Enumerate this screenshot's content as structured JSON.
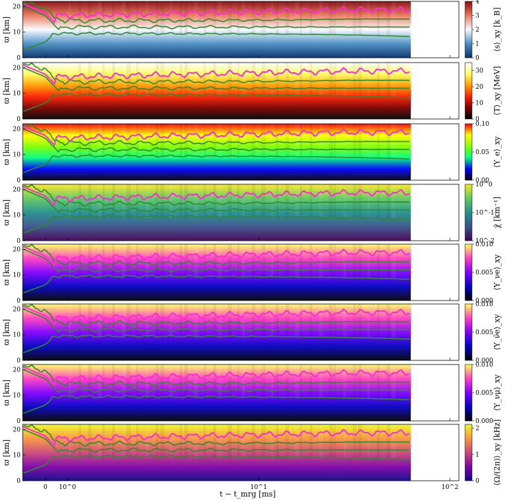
{
  "figure": {
    "xlabel": "t − t_mrg [ms]",
    "ylabel": "ϖ [km]",
    "x_axis": {
      "scale": "symlog",
      "ticks": [
        "0",
        "10^0",
        "10^1",
        "10^2"
      ],
      "range": [
        -0.4,
        120
      ]
    },
    "y_axis": {
      "range": [
        0,
        22
      ],
      "ticks": [
        "0",
        "10",
        "20"
      ]
    }
  },
  "chart_data": [
    {
      "type": "heatmap",
      "quantity": "entropy",
      "colorbar_label": "⟨s⟩_xy [k_B]",
      "colorbar_ticks": [
        "0",
        "1",
        "2",
        "3",
        "4"
      ],
      "colormap": [
        "#08306b",
        "#4a8fc4",
        "#f7fbff",
        "#e8785a",
        "#8a0a12"
      ],
      "overlay_colors": {
        "contours": "#2e8b2e",
        "surface": "#ff2bd6"
      }
    },
    {
      "type": "heatmap",
      "quantity": "temperature",
      "colorbar_label": "⟨T⟩_xy [MeV]",
      "colorbar_ticks": [
        "0",
        "10",
        "20",
        "30"
      ],
      "colormap": [
        "#000000",
        "#7a0000",
        "#ff2000",
        "#ffa000",
        "#ffff60",
        "#ffffff"
      ]
    },
    {
      "type": "heatmap",
      "quantity": "electron fraction",
      "colorbar_label": "⟨Y_e⟩_xy",
      "colorbar_ticks": [
        "0.00",
        "0.05",
        "0.10"
      ],
      "colormap": [
        "#000000",
        "#0000ff",
        "#00ff80",
        "#80ff00",
        "#ffff00",
        "#ff0000"
      ]
    },
    {
      "type": "heatmap",
      "quantity": "chi",
      "colorbar_label": "χ̄ [km⁻¹]",
      "colorbar_ticks": [
        "10^-2",
        "10^-1",
        "10^0"
      ],
      "colorbar_scale": "log",
      "colormap": [
        "#440154",
        "#3b528b",
        "#21918c",
        "#5ec962",
        "#fde725"
      ]
    },
    {
      "type": "heatmap",
      "quantity": "electron neutrino fraction",
      "colorbar_label": "⟨Y_νe⟩_xy",
      "colorbar_ticks": [
        "0.000",
        "0.005",
        "0.010"
      ],
      "colormap": [
        "#000000",
        "#0000c0",
        "#8000ff",
        "#ff40c0",
        "#ffff60"
      ]
    },
    {
      "type": "heatmap",
      "quantity": "electron antineutrino fraction",
      "colorbar_label": "⟨Y_ν̄e⟩_xy",
      "colorbar_ticks": [
        "0.000",
        "0.005",
        "0.010"
      ],
      "colormap": [
        "#000000",
        "#0000c0",
        "#8000ff",
        "#ff40c0",
        "#ffff60"
      ]
    },
    {
      "type": "heatmap",
      "quantity": "heavy-lepton neutrino fraction",
      "colorbar_label": "⟨Y_νμ⟩_xy",
      "colorbar_ticks": [
        "0.000",
        "0.005",
        "0.010"
      ],
      "colormap": [
        "#000000",
        "#0000c0",
        "#8000ff",
        "#ff40c0",
        "#ffff60"
      ]
    },
    {
      "type": "heatmap",
      "quantity": "angular velocity",
      "colorbar_label": "⟨Ω/(2π)⟩_xy [kHz]",
      "colorbar_ticks": [
        "0",
        "1",
        "2"
      ],
      "colormap": [
        "#0d0887",
        "#7e03a8",
        "#cc4778",
        "#f89540",
        "#f0f921"
      ]
    }
  ]
}
